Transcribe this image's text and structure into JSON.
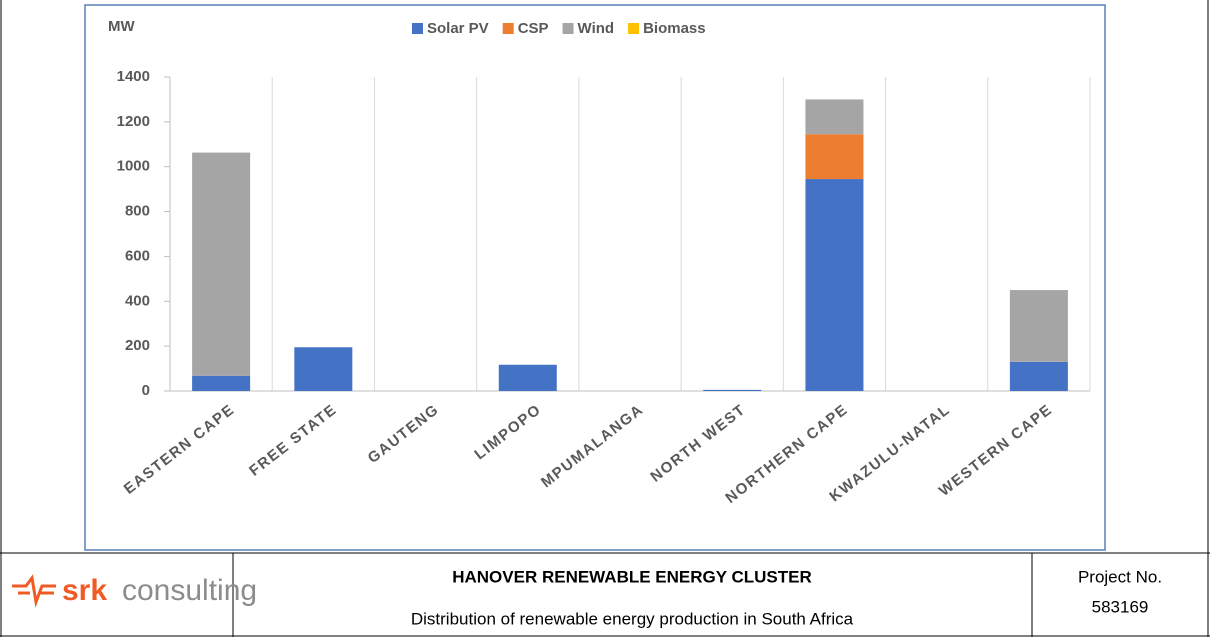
{
  "chart_data": {
    "type": "stacked_bar",
    "y_label": "MW",
    "categories": [
      "EASTERN CAPE",
      "FREE STATE",
      "GAUTENG",
      "LIMPOPO",
      "MPUMALANGA",
      "NORTH WEST",
      "NORTHERN CAPE",
      "KWAZULU-NATAL",
      "WESTERN CAPE"
    ],
    "series": [
      {
        "name": "Solar PV",
        "color": "#4472c4",
        "values": [
          68,
          195,
          0,
          117,
          0,
          5,
          945,
          0,
          130
        ]
      },
      {
        "name": "CSP",
        "color": "#ed7d31",
        "values": [
          0,
          0,
          0,
          0,
          0,
          0,
          200,
          0,
          0
        ]
      },
      {
        "name": "Wind",
        "color": "#a5a5a5",
        "values": [
          995,
          0,
          0,
          0,
          0,
          0,
          155,
          0,
          320
        ]
      },
      {
        "name": "Biomass",
        "color": "#ffc000",
        "values": [
          0,
          0,
          0,
          0,
          0,
          0,
          0,
          0,
          0
        ]
      }
    ],
    "ylim": [
      0,
      1400
    ],
    "yticks": [
      0,
      200,
      400,
      600,
      800,
      1000,
      1200,
      1400
    ],
    "grid": true,
    "legend": "top"
  },
  "footer": {
    "logo": {
      "brand": "srk",
      "word": "consulting"
    },
    "title": "HANOVER RENEWABLE ENERGY CLUSTER",
    "subtitle": "Distribution of renewable energy production in South Africa",
    "project_label": "Project No.",
    "project_number": "583169"
  }
}
